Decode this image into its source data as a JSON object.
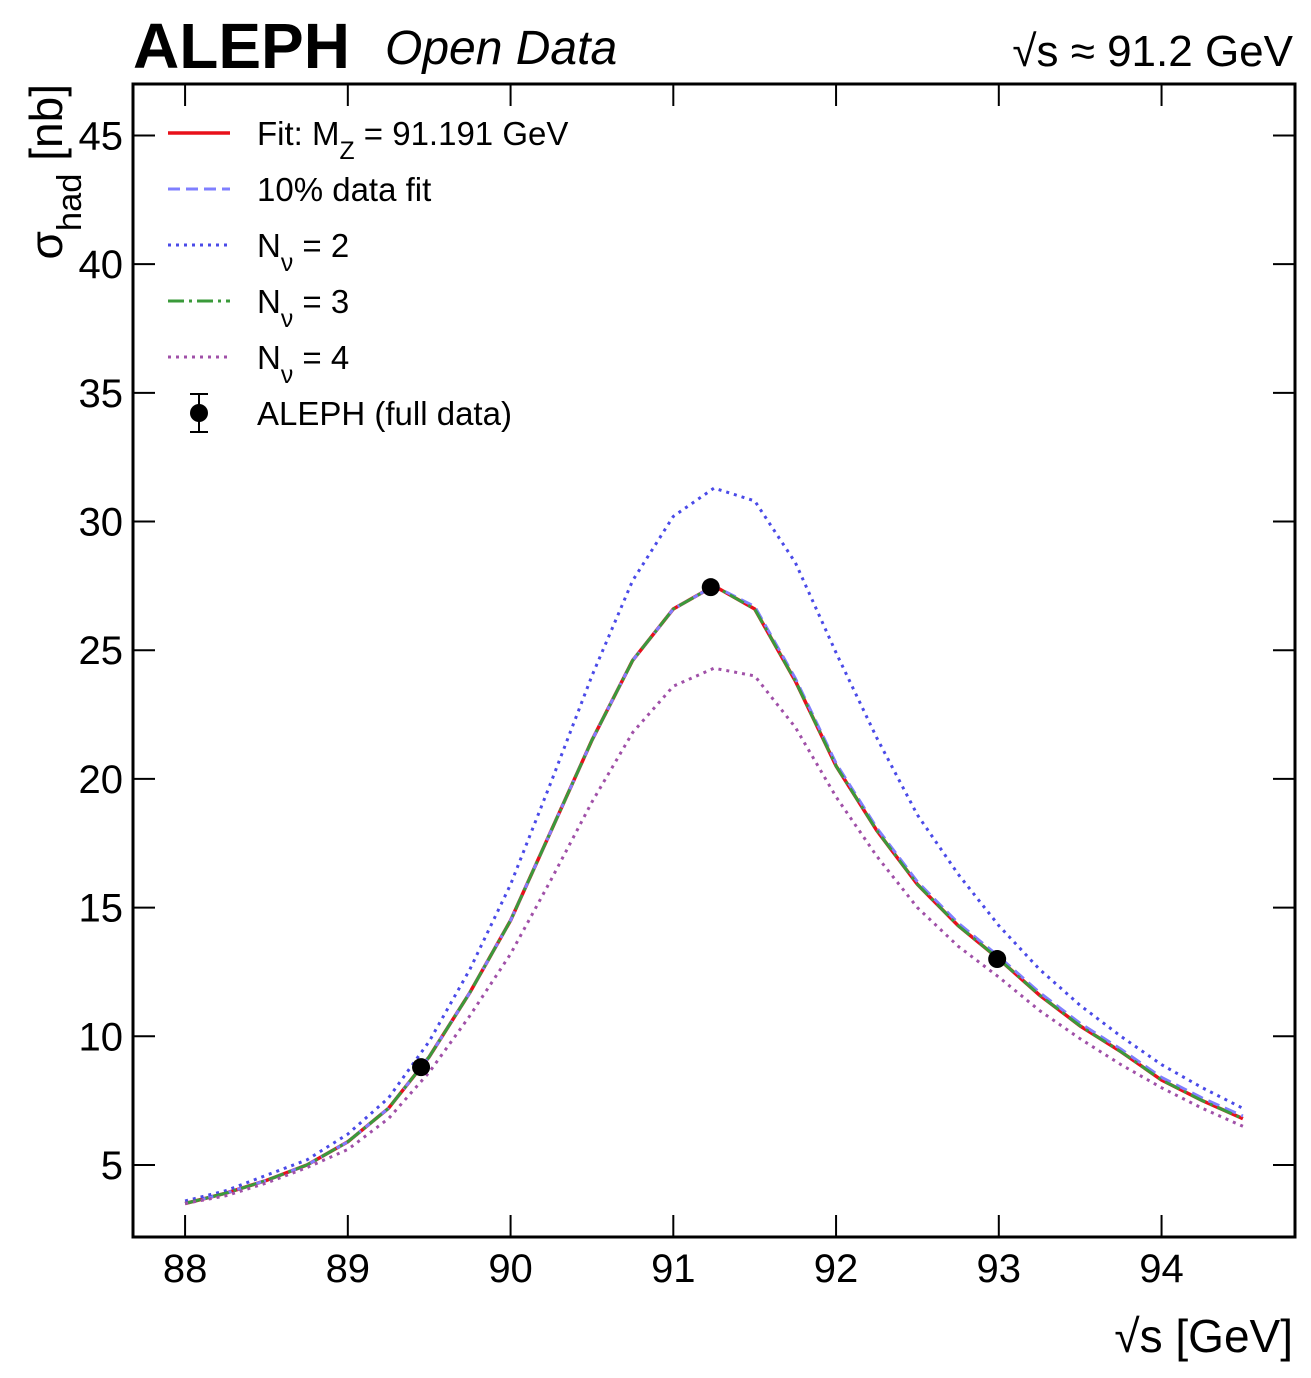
{
  "chart_data": {
    "type": "line",
    "brand": "ALEPH",
    "subtitle": "Open Data",
    "energy_label": "√s ≈ 91.2 GeV",
    "x_label": "√s [GeV]",
    "y_label": "σ_{had} [nb]",
    "xlim": [
      87.68,
      94.82
    ],
    "ylim": [
      2.2,
      47.0
    ],
    "xticks": [
      88,
      89,
      90,
      91,
      92,
      93,
      94
    ],
    "yticks": [
      5,
      10,
      15,
      20,
      25,
      30,
      35,
      40,
      45
    ],
    "legend": "upper left",
    "x": [
      88,
      88.25,
      88.5,
      88.75,
      89,
      89.25,
      89.5,
      89.75,
      90,
      90.25,
      90.5,
      90.75,
      91,
      91.25,
      91.5,
      91.75,
      92,
      92.25,
      92.5,
      92.75,
      93,
      93.25,
      93.5,
      93.75,
      94,
      94.25,
      94.5
    ],
    "series": [
      {
        "name": "Fit: M_{Z} = 91.191 GeV",
        "color": "#e8101a",
        "dash": "solid",
        "values": [
          3.5,
          3.9,
          4.4,
          5.0,
          5.9,
          7.2,
          9.2,
          11.7,
          14.5,
          18.0,
          21.5,
          24.6,
          26.6,
          27.5,
          26.6,
          23.8,
          20.5,
          18.0,
          15.9,
          14.3,
          13.0,
          11.6,
          10.4,
          9.4,
          8.3,
          7.5,
          6.8
        ]
      },
      {
        "name": "10% data fit",
        "color": "#7f7fff",
        "dash": "dashed",
        "values": [
          3.5,
          3.9,
          4.4,
          5.0,
          5.9,
          7.2,
          9.2,
          11.7,
          14.5,
          18.0,
          21.5,
          24.6,
          26.6,
          27.5,
          26.7,
          23.9,
          20.6,
          18.1,
          16.0,
          14.4,
          13.1,
          11.7,
          10.5,
          9.5,
          8.4,
          7.6,
          6.9
        ]
      },
      {
        "name": "N_{ν} = 2",
        "color": "#4a4ae8",
        "dash": "dotted",
        "values": [
          3.6,
          4.0,
          4.6,
          5.2,
          6.2,
          7.6,
          9.8,
          12.6,
          15.9,
          19.9,
          24.0,
          27.7,
          30.2,
          31.3,
          30.8,
          28.4,
          24.9,
          21.6,
          18.6,
          16.3,
          14.3,
          12.6,
          11.2,
          10.0,
          8.9,
          8.0,
          7.2
        ]
      },
      {
        "name": "N_{ν} = 3",
        "color": "#3a9a3a",
        "dash": "dashdot",
        "values": [
          3.5,
          3.9,
          4.4,
          5.0,
          5.9,
          7.2,
          9.2,
          11.7,
          14.5,
          18.0,
          21.5,
          24.6,
          26.6,
          27.5,
          26.6,
          23.8,
          20.5,
          18.0,
          15.9,
          14.3,
          13.0,
          11.6,
          10.4,
          9.4,
          8.3,
          7.5,
          6.8
        ]
      },
      {
        "name": "N_{ν} = 4",
        "color": "#a050a8",
        "dash": "dotted",
        "values": [
          3.5,
          3.8,
          4.3,
          4.9,
          5.6,
          6.8,
          8.6,
          10.8,
          13.2,
          16.1,
          19.1,
          21.8,
          23.6,
          24.3,
          24.0,
          22.0,
          19.3,
          17.0,
          15.0,
          13.5,
          12.3,
          11.0,
          9.9,
          8.9,
          8.0,
          7.2,
          6.5
        ]
      },
      {
        "name": "ALEPH (full data)",
        "color": "#000000",
        "marker": "circle",
        "x": [
          89.45,
          91.23,
          92.99
        ],
        "values": [
          8.8,
          27.45,
          13.0
        ]
      }
    ]
  }
}
